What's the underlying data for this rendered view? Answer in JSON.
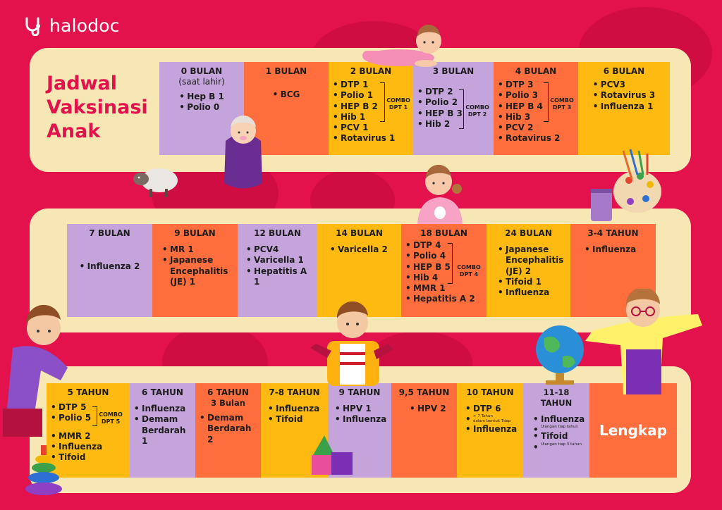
{
  "brand": "halodoc",
  "title_lines": [
    "Jadwal",
    "Vaksinasi",
    "Anak"
  ],
  "row1": [
    {
      "header": "0 BULAN",
      "note": "(saat lahir)",
      "items": [
        "Hep B 1",
        "Polio 0"
      ]
    },
    {
      "header": "1 BULAN",
      "items": [
        "BCG"
      ]
    },
    {
      "header": "2 BULAN",
      "items": [
        "DTP 1",
        "Polio 1",
        "HEP B 2",
        "Hib 1",
        "PCV 1",
        "Rotavirus 1"
      ],
      "combo": [
        "COMBO",
        "DPT 1"
      ]
    },
    {
      "header": "3 BULAN",
      "items": [
        "DTP 2",
        "Polio 2",
        "HEP B 3",
        "Hib 2"
      ],
      "combo": [
        "COMBO",
        "DPT 2"
      ]
    },
    {
      "header": "4 BULAN",
      "items": [
        "DTP 3",
        "Polio 3",
        "HEP B 4",
        "Hib 3",
        "PCV 2",
        "Rotavirus 2"
      ],
      "combo": [
        "COMBO",
        "DPT 3"
      ]
    },
    {
      "header": "6 BULAN",
      "items": [
        "PCV3",
        "Rotavirus 3",
        "Influenza 1"
      ]
    }
  ],
  "row2": [
    {
      "header": "7 BULAN",
      "items": [
        "Influenza  2"
      ]
    },
    {
      "header": "9 BULAN",
      "items": [
        "MR 1",
        "Japanese Encephalitis (JE) 1"
      ]
    },
    {
      "header": "12 BULAN",
      "items": [
        "PCV4",
        "Varicella 1",
        "Hepatitis A 1"
      ]
    },
    {
      "header": "14 BULAN",
      "items": [
        "Varicella 2"
      ]
    },
    {
      "header": "18 BULAN",
      "items": [
        "DTP 4",
        "Polio 4",
        "HEP B 5",
        "Hib 4",
        "MMR 1",
        "Hepatitis A 2"
      ],
      "combo": [
        "COMBO",
        "DPT 4"
      ]
    },
    {
      "header": "24  BULAN",
      "items": [
        "Japanese Encephalitis (JE) 2",
        "Tifoid 1",
        "Influenza"
      ]
    },
    {
      "header": "3-4 TAHUN",
      "items": [
        "Influenza"
      ]
    }
  ],
  "row3": [
    {
      "header": "5 TAHUN",
      "items": [
        "DTP 5",
        "Polio 5",
        "MMR 2",
        "Influenza",
        "Tifoid"
      ],
      "combo": [
        "COMBO",
        "DPT 5"
      ]
    },
    {
      "header": "6 TAHUN",
      "items": [
        "Influenza",
        "Demam Berdarah 1"
      ]
    },
    {
      "header": "6 TAHUN",
      "subheader": "3 Bulan",
      "items": [
        "Demam Berdarah 2"
      ]
    },
    {
      "header": "7-8 TAHUN",
      "items": [
        "Influenza",
        "Tifoid"
      ]
    },
    {
      "header": "9 TAHUN",
      "items": [
        "HPV 1",
        "Influenza"
      ]
    },
    {
      "header": "9,5 TAHUN",
      "items": [
        "HPV 2"
      ]
    },
    {
      "header": "10 TAHUN",
      "items": [
        "DTP 6",
        "Influenza"
      ],
      "notes": [
        "> 7 Tahun",
        "dalam bentuk Tdap"
      ]
    },
    {
      "header": "11-18 TAHUN",
      "items": [
        "Influenza",
        "Tifoid"
      ],
      "notes": [
        "Ulangan tiap tahun",
        "Ulangan tiap 3 tahun"
      ]
    },
    {
      "label": "Lengkap"
    }
  ],
  "colors": {
    "background": "#e3124c",
    "band": "#f6e7b4",
    "purple": "#c4a4da",
    "orange": "#ff6e3c",
    "yellow": "#ffba12",
    "title": "#e3124c"
  },
  "icons": [
    "stethoscope-icon",
    "baby-illustration",
    "sheep-illustration",
    "toddler-illustration",
    "paint-palette-illustration",
    "boy-illustration",
    "student-illustration",
    "globe-illustration",
    "girl-with-glasses-illustration",
    "ring-stacker-toy",
    "toy-blocks"
  ]
}
